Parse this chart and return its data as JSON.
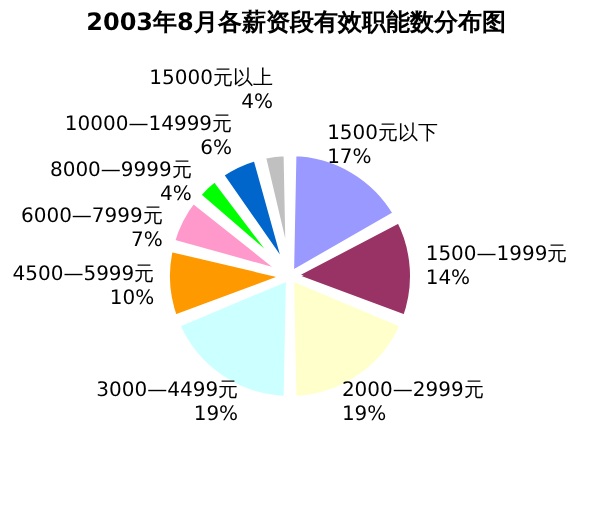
{
  "chart_data": {
    "type": "pie",
    "title": "2003年8月各薪资段有效职能数分布图",
    "categories": [
      "1500元以下",
      "1500—1999元",
      "2000—2999元",
      "3000—4499元",
      "4500—5999元",
      "6000—7999元",
      "8000—9999元",
      "10000—14999元",
      "15000元以上"
    ],
    "values": [
      17,
      14,
      19,
      19,
      10,
      7,
      4,
      6,
      4
    ],
    "value_labels": [
      "17%",
      "14%",
      "19%",
      "19%",
      "10%",
      "7%",
      "4%",
      "6%",
      "4%"
    ],
    "colors": [
      "#9999ff",
      "#993366",
      "#ffffcc",
      "#ccffff",
      "#ff9900",
      "#ff99cc",
      "#00ff00",
      "#0066cc",
      "#c0c0c0"
    ],
    "legend": false
  }
}
